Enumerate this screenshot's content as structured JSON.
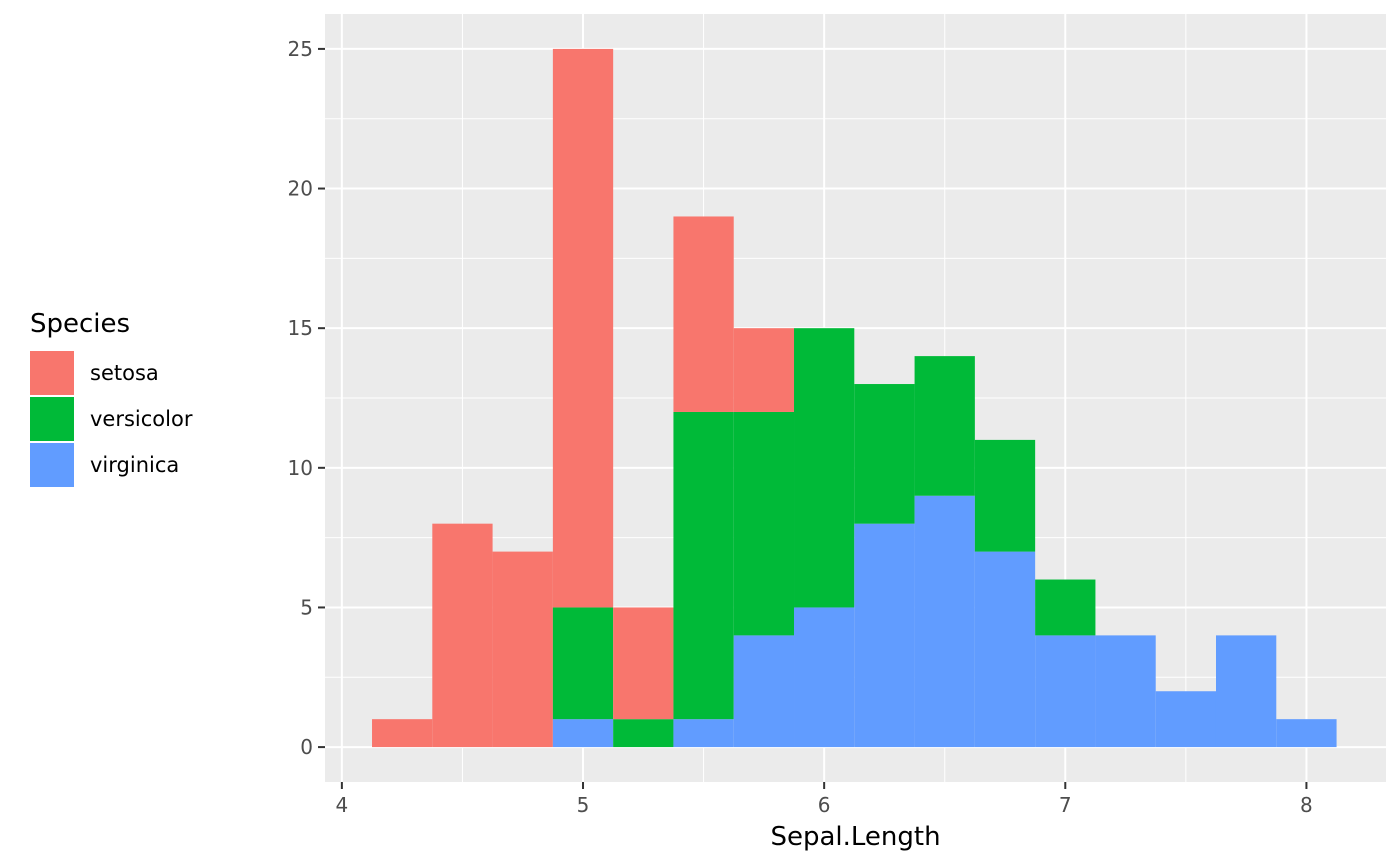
{
  "chart_data": {
    "type": "bar",
    "stacked": true,
    "xlabel": "Sepal.Length",
    "ylabel": "",
    "title": "",
    "xlim": [
      3.93,
      8.33
    ],
    "ylim": [
      -1.25,
      26.25
    ],
    "x_ticks": [
      4,
      5,
      6,
      7,
      8
    ],
    "y_ticks": [
      0,
      5,
      10,
      15,
      20,
      25
    ],
    "bin_width": 0.25,
    "bin_centers": [
      4.25,
      4.5,
      4.75,
      5.0,
      5.25,
      5.5,
      5.75,
      6.0,
      6.25,
      6.5,
      6.75,
      7.0,
      7.25,
      7.5,
      7.75,
      8.0
    ],
    "series": [
      {
        "name": "virginica",
        "color": "#619CFF",
        "values": [
          0,
          0,
          0,
          1,
          0,
          1,
          4,
          5,
          8,
          9,
          7,
          4,
          4,
          2,
          4,
          1
        ]
      },
      {
        "name": "versicolor",
        "color": "#00BA38",
        "values": [
          0,
          0,
          0,
          4,
          1,
          11,
          8,
          10,
          5,
          5,
          4,
          2,
          0,
          0,
          0,
          0
        ]
      },
      {
        "name": "setosa",
        "color": "#F8766D",
        "values": [
          1,
          8,
          7,
          20,
          4,
          7,
          3,
          0,
          0,
          0,
          0,
          0,
          0,
          0,
          0,
          0
        ]
      }
    ],
    "grid": true,
    "legend": {
      "title": "Species",
      "placement": "left",
      "entries": [
        {
          "label": "setosa",
          "color": "#F8766D"
        },
        {
          "label": "versicolor",
          "color": "#00BA38"
        },
        {
          "label": "virginica",
          "color": "#619CFF"
        }
      ]
    },
    "panel_background": "#EBEBEB",
    "grid_color": "#FFFFFF"
  }
}
